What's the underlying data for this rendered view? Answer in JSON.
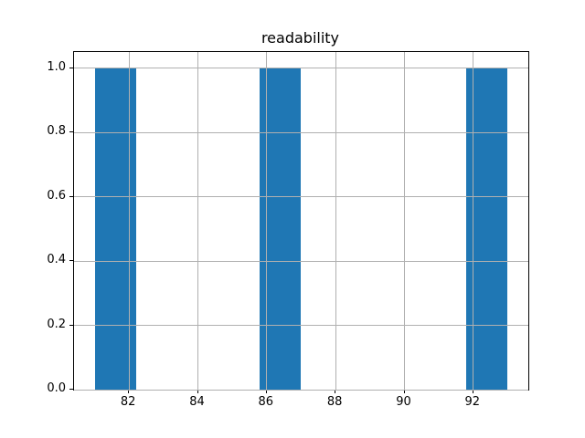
{
  "chart_data": {
    "type": "bar",
    "subtype": "histogram",
    "title": "readability",
    "xlabel": "",
    "ylabel": "",
    "bars": [
      {
        "x0": 81.0,
        "x1": 82.2,
        "value": 1.0
      },
      {
        "x0": 85.8,
        "x1": 87.0,
        "value": 1.0
      },
      {
        "x0": 91.8,
        "x1": 93.0,
        "value": 1.0
      }
    ],
    "xticks": [
      82,
      84,
      86,
      88,
      90,
      92
    ],
    "xtick_labels": [
      "82",
      "84",
      "86",
      "88",
      "90",
      "92"
    ],
    "yticks": [
      0.0,
      0.2,
      0.4,
      0.6,
      0.8,
      1.0
    ],
    "ytick_labels": [
      "0.0",
      "0.2",
      "0.4",
      "0.6",
      "0.8",
      "1.0"
    ],
    "xlim": [
      80.4,
      93.6
    ],
    "ylim": [
      0,
      1.05
    ],
    "grid": true,
    "legend": null,
    "colors": {
      "bar_fill": "#1f77b4",
      "grid": "#b0b0b0",
      "spine": "#000000",
      "background": "#ffffff",
      "text": "#000000"
    }
  }
}
